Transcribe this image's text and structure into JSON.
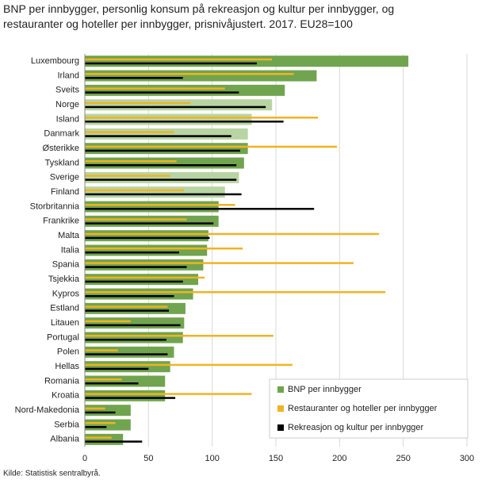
{
  "chart_data": {
    "type": "hbar",
    "title": "BNP per innbygger, personlig konsum på rekreasjon og kultur per innbygger, og restauranter og hoteller per innbygger, prisnivåjustert. 2017. EU28=100",
    "source": "Kilde: Statistisk sentralbyrå.",
    "categories": [
      "Luxembourg",
      "Irland",
      "Sveits",
      "Norge",
      "Island",
      "Danmark",
      "Østerikke",
      "Tyskland",
      "Sverige",
      "Finland",
      "Storbritannia",
      "Frankrike",
      "Malta",
      "Italia",
      "Spania",
      "Tsjekkia",
      "Kypros",
      "Estland",
      "Litauen",
      "Portugal",
      "Polen",
      "Hellas",
      "Romania",
      "Kroatia",
      "Nord-Makedonia",
      "Serbia",
      "Albania"
    ],
    "series": [
      {
        "name": "BNP per innbygger",
        "color": "#70a44e",
        "colors": [
          "#70a44e",
          "#70a44e",
          "#70a44e",
          "#b8d4a2",
          "#b8d4a2",
          "#b8d4a2",
          "#70a44e",
          "#70a44e",
          "#b8d4a2",
          "#b8d4a2",
          "#70a44e",
          "#70a44e",
          "#70a44e",
          "#70a44e",
          "#70a44e",
          "#70a44e",
          "#70a44e",
          "#70a44e",
          "#70a44e",
          "#70a44e",
          "#70a44e",
          "#70a44e",
          "#70a44e",
          "#70a44e",
          "#70a44e",
          "#70a44e",
          "#70a44e"
        ],
        "values": [
          254,
          182,
          157,
          147,
          131,
          128,
          128,
          125,
          121,
          110,
          105,
          105,
          97,
          96,
          93,
          89,
          85,
          79,
          78,
          77,
          70,
          67,
          63,
          63,
          36,
          36,
          30
        ]
      },
      {
        "name": "Restauranter og hoteller per innbygger",
        "color": "#f0b323",
        "values": [
          147,
          164,
          110,
          83,
          183,
          70,
          198,
          72,
          67,
          78,
          118,
          80,
          231,
          124,
          211,
          94,
          236,
          65,
          36,
          148,
          26,
          163,
          29,
          131,
          16,
          24,
          21
        ]
      },
      {
        "name": "Rekreasjon og kultur per innbygger",
        "color": "#000000",
        "values": [
          135,
          77,
          121,
          142,
          156,
          115,
          122,
          119,
          119,
          123,
          180,
          101,
          98,
          74,
          80,
          77,
          70,
          66,
          75,
          64,
          65,
          50,
          42,
          71,
          24,
          17,
          45
        ]
      }
    ],
    "xlim": [
      0,
      300
    ],
    "xticks": [
      0,
      50,
      100,
      150,
      200,
      250,
      300
    ],
    "grid": true
  }
}
